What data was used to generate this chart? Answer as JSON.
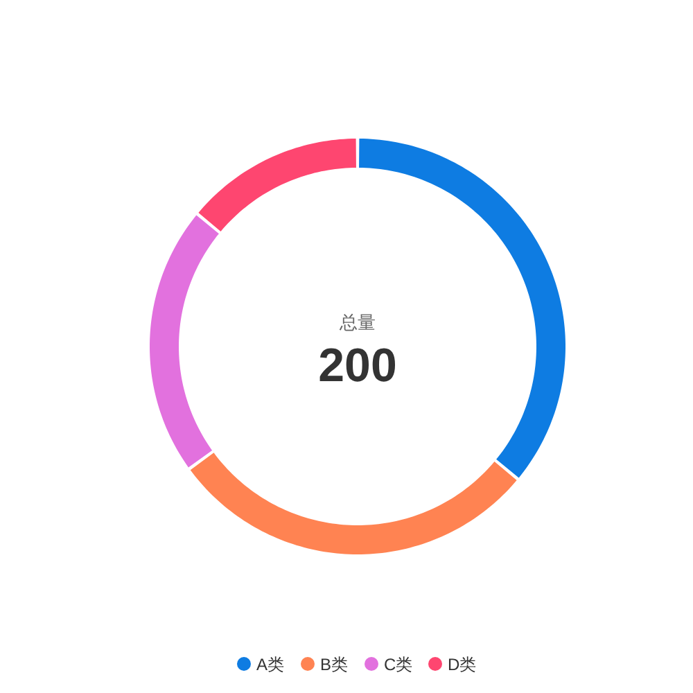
{
  "chart_data": {
    "type": "donut",
    "categories": [
      "A类",
      "B类",
      "C类",
      "D类"
    ],
    "values": [
      36,
      29,
      21,
      14
    ],
    "colors": [
      "#0e7ce2",
      "#ff8352",
      "#e271de",
      "#fe4670"
    ],
    "annotations": [
      "总量",
      "200"
    ],
    "legend": "bottom"
  }
}
